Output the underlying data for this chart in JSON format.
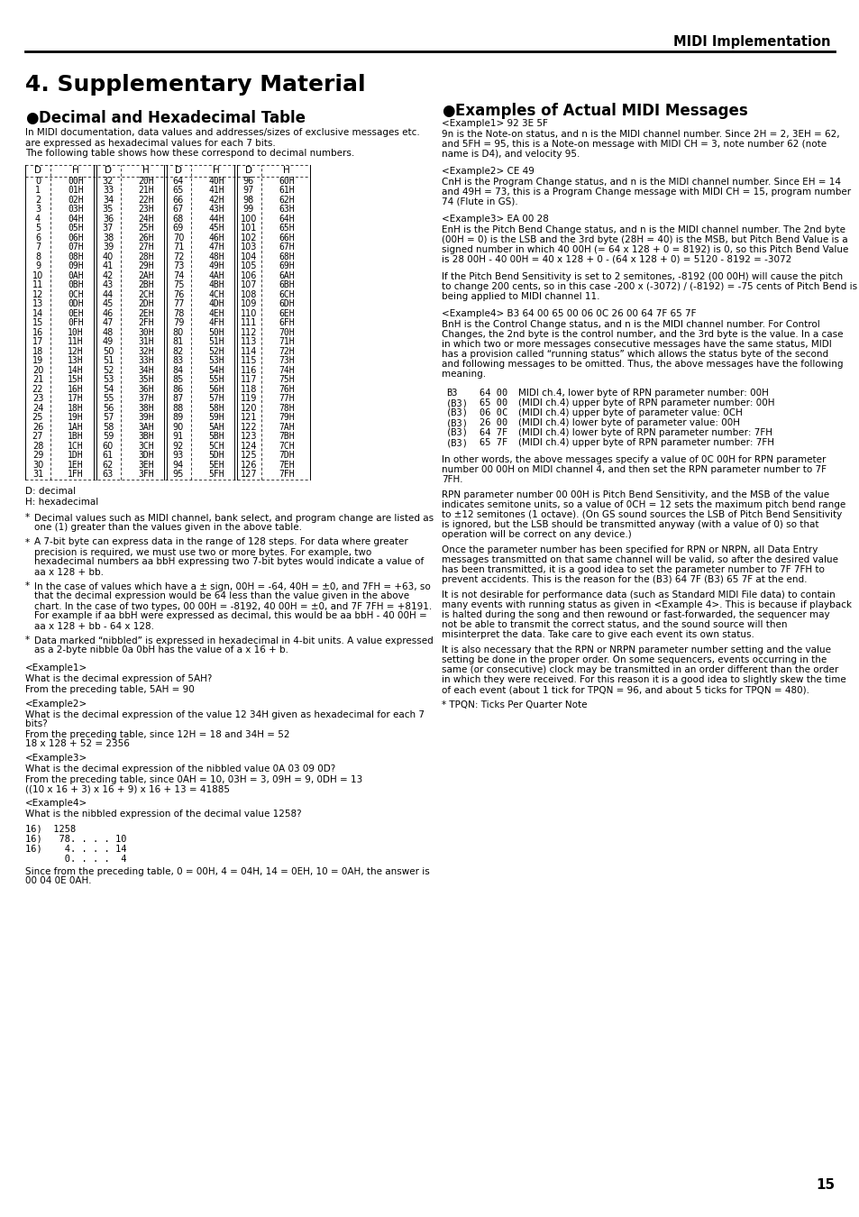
{
  "page_title": "MIDI Implementation",
  "section_title": "4. Supplementary Material",
  "subsection1_title": "Decimal and Hexadecimal Table",
  "subsection1_intro": "In MIDI documentation, data values and addresses/sizes of exclusive messages etc.\nare expressed as hexadecimal values for each 7 bits.\nThe following table shows how these correspond to decimal numbers.",
  "table_data": [
    [
      0,
      "00H",
      32,
      "20H",
      64,
      "40H",
      96,
      "60H"
    ],
    [
      1,
      "01H",
      33,
      "21H",
      65,
      "41H",
      97,
      "61H"
    ],
    [
      2,
      "02H",
      34,
      "22H",
      66,
      "42H",
      98,
      "62H"
    ],
    [
      3,
      "03H",
      35,
      "23H",
      67,
      "43H",
      99,
      "63H"
    ],
    [
      4,
      "04H",
      36,
      "24H",
      68,
      "44H",
      100,
      "64H"
    ],
    [
      5,
      "05H",
      37,
      "25H",
      69,
      "45H",
      101,
      "65H"
    ],
    [
      6,
      "06H",
      38,
      "26H",
      70,
      "46H",
      102,
      "66H"
    ],
    [
      7,
      "07H",
      39,
      "27H",
      71,
      "47H",
      103,
      "67H"
    ],
    [
      8,
      "08H",
      40,
      "28H",
      72,
      "48H",
      104,
      "68H"
    ],
    [
      9,
      "09H",
      41,
      "29H",
      73,
      "49H",
      105,
      "69H"
    ],
    [
      10,
      "0AH",
      42,
      "2AH",
      74,
      "4AH",
      106,
      "6AH"
    ],
    [
      11,
      "0BH",
      43,
      "2BH",
      75,
      "4BH",
      107,
      "6BH"
    ],
    [
      12,
      "0CH",
      44,
      "2CH",
      76,
      "4CH",
      108,
      "6CH"
    ],
    [
      13,
      "0DH",
      45,
      "2DH",
      77,
      "4DH",
      109,
      "6DH"
    ],
    [
      14,
      "0EH",
      46,
      "2EH",
      78,
      "4EH",
      110,
      "6EH"
    ],
    [
      15,
      "0FH",
      47,
      "2FH",
      79,
      "4FH",
      111,
      "6FH"
    ],
    [
      16,
      "10H",
      48,
      "30H",
      80,
      "50H",
      112,
      "70H"
    ],
    [
      17,
      "11H",
      49,
      "31H",
      81,
      "51H",
      113,
      "71H"
    ],
    [
      18,
      "12H",
      50,
      "32H",
      82,
      "52H",
      114,
      "72H"
    ],
    [
      19,
      "13H",
      51,
      "33H",
      83,
      "53H",
      115,
      "73H"
    ],
    [
      20,
      "14H",
      52,
      "34H",
      84,
      "54H",
      116,
      "74H"
    ],
    [
      21,
      "15H",
      53,
      "35H",
      85,
      "55H",
      117,
      "75H"
    ],
    [
      22,
      "16H",
      54,
      "36H",
      86,
      "56H",
      118,
      "76H"
    ],
    [
      23,
      "17H",
      55,
      "37H",
      87,
      "57H",
      119,
      "77H"
    ],
    [
      24,
      "18H",
      56,
      "38H",
      88,
      "58H",
      120,
      "78H"
    ],
    [
      25,
      "19H",
      57,
      "39H",
      89,
      "59H",
      121,
      "79H"
    ],
    [
      26,
      "1AH",
      58,
      "3AH",
      90,
      "5AH",
      122,
      "7AH"
    ],
    [
      27,
      "1BH",
      59,
      "3BH",
      91,
      "5BH",
      123,
      "7BH"
    ],
    [
      28,
      "1CH",
      60,
      "3CH",
      92,
      "5CH",
      124,
      "7CH"
    ],
    [
      29,
      "1DH",
      61,
      "3DH",
      93,
      "5DH",
      125,
      "7DH"
    ],
    [
      30,
      "1EH",
      62,
      "3EH",
      94,
      "5EH",
      126,
      "7EH"
    ],
    [
      31,
      "1FH",
      63,
      "3FH",
      95,
      "5FH",
      127,
      "7FH"
    ]
  ],
  "notes": [
    "D: decimal",
    "H: hexadecimal"
  ],
  "bullets": [
    "Decimal values such as MIDI channel, bank select, and program change are listed as\none (1) greater than the values given in the above table.",
    "A 7-bit byte can express data in the range of 128 steps. For data where greater\nprecision is required, we must use two or more bytes. For example, two\nhexadecimal numbers aa bbH expressing two 7-bit bytes would indicate a value of\naa x 128 + bb.",
    "In the case of values which have a ± sign, 00H = -64, 40H = ±0, and 7FH = +63, so\nthat the decimal expression would be 64 less than the value given in the above\nchart. In the case of two types, 00 00H = -8192, 40 00H = ±0, and 7F 7FH = +8191.\nFor example if aa bbH were expressed as decimal, this would be aa bbH - 40 00H =\naa x 128 + bb - 64 x 128.",
    "Data marked “nibbled” is expressed in hexadecimal in 4-bit units. A value expressed\nas a 2-byte nibble 0a 0bH has the value of a x 16 + b."
  ],
  "left_examples": [
    {
      "tag": "<Example1>",
      "lines": [
        "What is the decimal expression of 5AH?",
        "From the preceding table, 5AH = 90"
      ]
    },
    {
      "tag": "<Example2>",
      "lines": [
        "What is the decimal expression of the value 12 34H given as hexadecimal for each 7",
        "bits?",
        "From the preceding table, since 12H = 18 and 34H = 52",
        "18 x 128 + 52 = 2356"
      ]
    },
    {
      "tag": "<Example3>",
      "lines": [
        "What is the decimal expression of the nibbled value 0A 03 09 0D?",
        "From the preceding table, since 0AH = 10, 03H = 3, 09H = 9, 0DH = 13",
        "((10 x 16 + 3) x 16 + 9) x 16 + 13 = 41885"
      ]
    },
    {
      "tag": "<Example4>",
      "lines": [
        "What is the nibbled expression of the decimal value 1258?"
      ]
    },
    {
      "tag": "nibble_calc",
      "lines": [
        "16)  1258",
        "16)   78. . . . 10",
        "16)    4. . . . 14",
        "       0. . . .  4"
      ]
    },
    {
      "tag": "",
      "lines": [
        "Since from the preceding table, 0 = 00H, 4 = 04H, 14 = 0EH, 10 = 0AH, the answer is",
        "00 04 0E 0AH."
      ]
    }
  ],
  "right_section_title": "Examples of Actual MIDI Messages",
  "right_examples": [
    {
      "tag": "<Example1> 92 3E 5F",
      "lines": [
        "9n is the Note-on status, and n is the MIDI channel number. Since 2H = 2, 3EH = 62,",
        "and 5FH = 95, this is a Note-on message with MIDI CH = 3, note number 62 (note",
        "name is D4), and velocity 95."
      ]
    },
    {
      "tag": "<Example2> CE 49",
      "lines": [
        "CnH is the Program Change status, and n is the MIDI channel number. Since EH = 14",
        "and 49H = 73, this is a Program Change message with MIDI CH = 15, program number",
        "74 (Flute in GS)."
      ]
    },
    {
      "tag": "<Example3> EA 00 28",
      "lines": [
        "EnH is the Pitch Bend Change status, and n is the MIDI channel number. The 2nd byte",
        "(00H = 0) is the LSB and the 3rd byte (28H = 40) is the MSB, but Pitch Bend Value is a",
        "signed number in which 40 00H (= 64 x 128 + 0 = 8192) is 0, so this Pitch Bend Value",
        "is 28 00H - 40 00H = 40 x 128 + 0 - (64 x 128 + 0) = 5120 - 8192 = -3072"
      ]
    },
    {
      "tag": "",
      "lines": [
        "If the Pitch Bend Sensitivity is set to 2 semitones, -8192 (00 00H) will cause the pitch",
        "to change 200 cents, so in this case -200 x (-3072) / (-8192) = -75 cents of Pitch Bend is",
        "being applied to MIDI channel 11."
      ]
    },
    {
      "tag": "<Example4> B3 64 00 65 00 06 0C 26 00 64 7F 65 7F",
      "lines": [
        "BnH is the Control Change status, and n is the MIDI channel number. For Control",
        "Changes, the 2nd byte is the control number, and the 3rd byte is the value. In a case",
        "in which two or more messages consecutive messages have the same status, MIDI",
        "has a provision called “running status” which allows the status byte of the second",
        "and following messages to be omitted. Thus, the above messages have the following",
        "meaning."
      ]
    }
  ],
  "midi_table": [
    [
      "B3",
      "64 00",
      "MIDI ch.4, lower byte of RPN parameter number: 00H"
    ],
    [
      "(B3)",
      "65 00",
      "(MIDI ch.4) upper byte of RPN parameter number: 00H"
    ],
    [
      "(B3)",
      "06 0C",
      "(MIDI ch.4) upper byte of parameter value: 0CH"
    ],
    [
      "(B3)",
      "26 00",
      "(MIDI ch.4) lower byte of parameter value: 00H"
    ],
    [
      "(B3)",
      "64 7F",
      "(MIDI ch.4) lower byte of RPN parameter number: 7FH"
    ],
    [
      "(B3)",
      "65 7F",
      "(MIDI ch.4) upper byte of RPN parameter number: 7FH"
    ]
  ],
  "right_footer": [
    "In other words, the above messages specify a value of 0C 00H for RPN parameter",
    "number 00 00H on MIDI channel 4, and then set the RPN parameter number to 7F",
    "7FH.",
    "",
    "RPN parameter number 00 00H is Pitch Bend Sensitivity, and the MSB of the value",
    "indicates semitone units, so a value of 0CH = 12 sets the maximum pitch bend range",
    "to ±12 semitones (1 octave). (On GS sound sources the LSB of Pitch Bend Sensitivity",
    "is ignored, but the LSB should be transmitted anyway (with a value of 0) so that",
    "operation will be correct on any device.)",
    "",
    "Once the parameter number has been specified for RPN or NRPN, all Data Entry",
    "messages transmitted on that same channel will be valid, so after the desired value",
    "has been transmitted, it is a good idea to set the parameter number to 7F 7FH to",
    "prevent accidents. This is the reason for the (B3) 64 7F (B3) 65 7F at the end.",
    "",
    "It is not desirable for performance data (such as Standard MIDI File data) to contain",
    "many events with running status as given in <Example 4>. This is because if playback",
    "is halted during the song and then rewound or fast-forwarded, the sequencer may",
    "not be able to transmit the correct status, and the sound source will then",
    "misinterpret the data. Take care to give each event its own status.",
    "",
    "It is also necessary that the RPN or NRPN parameter number setting and the value",
    "setting be done in the proper order. On some sequencers, events occurring in the",
    "same (or consecutive) clock may be transmitted in an order different than the order",
    "in which they were received. For this reason it is a good idea to slightly skew the time",
    "of each event (about 1 tick for TPQN = 96, and about 5 ticks for TPQN = 480).",
    "",
    "* TPQN: Ticks Per Quarter Note"
  ],
  "page_number": "15"
}
